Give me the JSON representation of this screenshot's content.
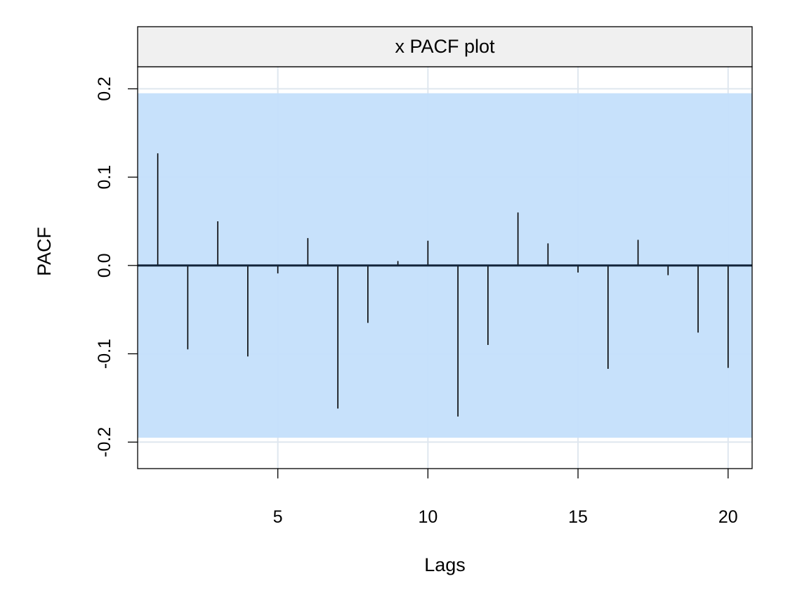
{
  "chart_data": {
    "type": "bar",
    "title": "x PACF plot",
    "xlabel": "Lags",
    "ylabel": "PACF",
    "xlim": [
      0.33,
      20.8
    ],
    "ylim": [
      -0.23,
      0.225
    ],
    "x_ticks": [
      5,
      10,
      15,
      20
    ],
    "x_tick_labels": [
      "5",
      "10",
      "15",
      "20"
    ],
    "y_ticks": [
      -0.2,
      -0.1,
      0.0,
      0.1,
      0.2
    ],
    "y_tick_labels": [
      "-0.2",
      "-0.1",
      "0.0",
      "0.1",
      "0.2"
    ],
    "confidence_band": [
      -0.195,
      0.195
    ],
    "grid": true,
    "lags": [
      1,
      2,
      3,
      4,
      5,
      6,
      7,
      8,
      9,
      10,
      11,
      12,
      13,
      14,
      15,
      16,
      17,
      18,
      19,
      20
    ],
    "values": [
      0.127,
      -0.095,
      0.05,
      -0.103,
      -0.009,
      0.031,
      -0.162,
      -0.065,
      0.005,
      0.028,
      -0.171,
      -0.09,
      0.06,
      0.025,
      -0.008,
      -0.117,
      0.029,
      -0.011,
      -0.076,
      -0.116
    ],
    "colors": {
      "band": "#c4dffb",
      "strip": "#f0f0f0",
      "grid": "#dfe7ef",
      "zero_line": "#12243a",
      "bars": "#000000"
    }
  }
}
